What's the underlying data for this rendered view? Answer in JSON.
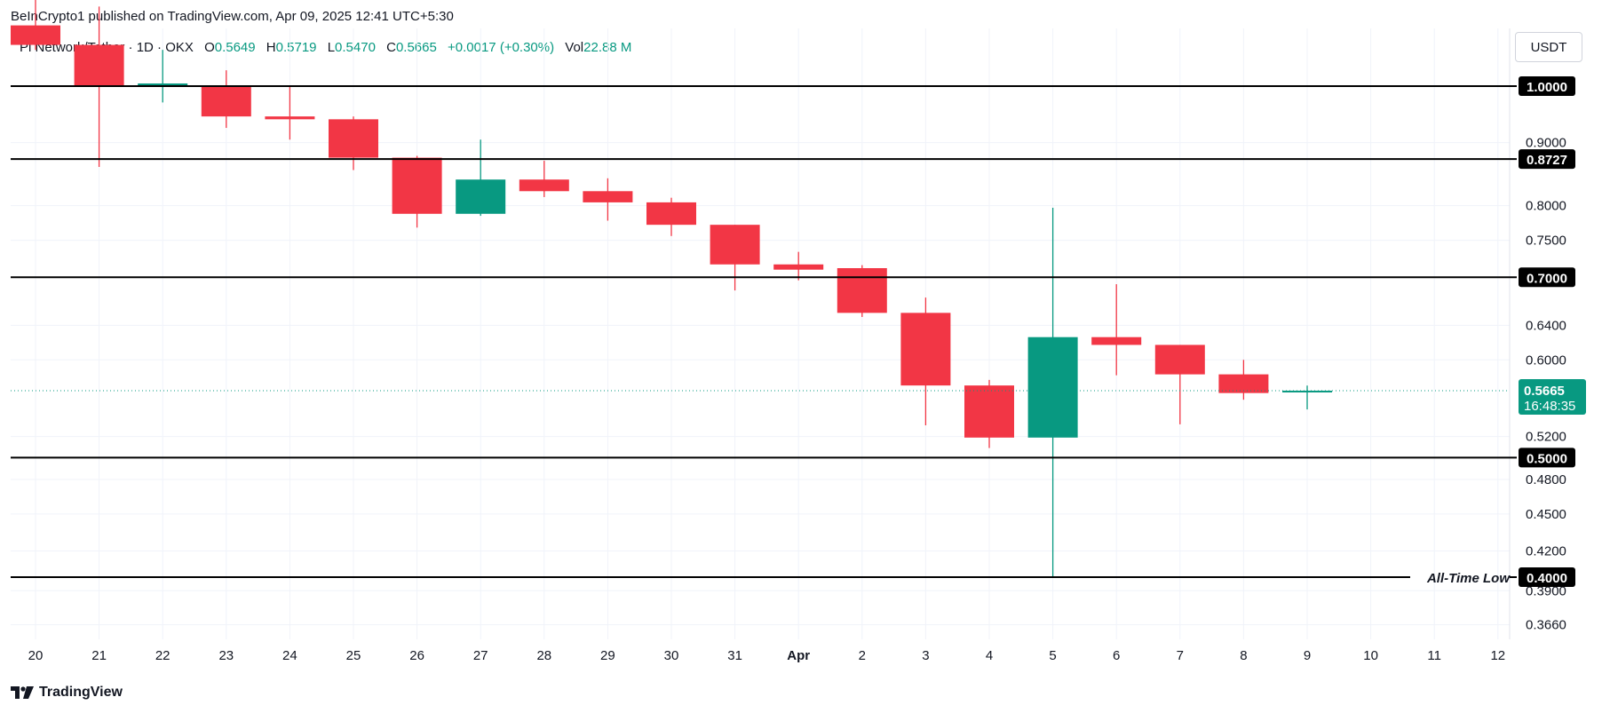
{
  "header": {
    "published_line": "BeInCrypto1 published on TradingView.com, Apr 09, 2025 12:41 UTC+5:30"
  },
  "symbol_bar": {
    "symbol": "Pi Network/Tether · 1D · OKX",
    "open_label": "O",
    "open": "0.5649",
    "high_label": "H",
    "high": "0.5719",
    "low_label": "L",
    "low": "0.5470",
    "close_label": "C",
    "close": "0.5665",
    "change": "+0.0017 (+0.30%)",
    "vol_label": "Vol",
    "vol": "22.88 M"
  },
  "currency_button": "USDT",
  "footer": {
    "brand": "TradingView"
  },
  "colors": {
    "up": "#089981",
    "down": "#f23645",
    "line": "#000000",
    "grid": "#f0f3fa",
    "price_label": "#089981"
  },
  "chart_data": {
    "type": "candlestick",
    "y_scale": "log",
    "ylim": [
      0.35,
      1.16
    ],
    "y_ticks": [
      "0.9000",
      "0.8000",
      "0.7500",
      "0.6400",
      "0.6000",
      "0.5200",
      "0.4800",
      "0.4500",
      "0.4200",
      "0.3900",
      "0.3660"
    ],
    "x_ticks": [
      "20",
      "21",
      "22",
      "23",
      "24",
      "25",
      "26",
      "27",
      "28",
      "29",
      "30",
      "31",
      "Apr",
      "2",
      "3",
      "4",
      "5",
      "6",
      "7",
      "8",
      "9",
      "10",
      "11",
      "12"
    ],
    "candles": [
      {
        "o": 1.12,
        "h": 1.18,
        "l": 1.07,
        "c": 1.08
      },
      {
        "o": 1.08,
        "h": 1.16,
        "l": 0.86,
        "c": 1.0
      },
      {
        "o": 1.0,
        "h": 1.07,
        "l": 0.97,
        "c": 1.005
      },
      {
        "o": 1.0,
        "h": 1.03,
        "l": 0.925,
        "c": 0.945
      },
      {
        "o": 0.945,
        "h": 1.0,
        "l": 0.905,
        "c": 0.94
      },
      {
        "o": 0.94,
        "h": 0.945,
        "l": 0.855,
        "c": 0.875
      },
      {
        "o": 0.875,
        "h": 0.878,
        "l": 0.768,
        "c": 0.788
      },
      {
        "o": 0.788,
        "h": 0.905,
        "l": 0.785,
        "c": 0.84
      },
      {
        "o": 0.84,
        "h": 0.87,
        "l": 0.813,
        "c": 0.822
      },
      {
        "o": 0.822,
        "h": 0.842,
        "l": 0.778,
        "c": 0.805
      },
      {
        "o": 0.805,
        "h": 0.812,
        "l": 0.756,
        "c": 0.772
      },
      {
        "o": 0.772,
        "h": 0.772,
        "l": 0.683,
        "c": 0.717
      },
      {
        "o": 0.717,
        "h": 0.734,
        "l": 0.696,
        "c": 0.71
      },
      {
        "o": 0.712,
        "h": 0.716,
        "l": 0.65,
        "c": 0.655
      },
      {
        "o": 0.655,
        "h": 0.674,
        "l": 0.531,
        "c": 0.572
      },
      {
        "o": 0.572,
        "h": 0.578,
        "l": 0.509,
        "c": 0.519
      },
      {
        "o": 0.519,
        "h": 0.797,
        "l": 0.4,
        "c": 0.626
      },
      {
        "o": 0.626,
        "h": 0.691,
        "l": 0.583,
        "c": 0.617
      },
      {
        "o": 0.617,
        "h": 0.617,
        "l": 0.532,
        "c": 0.584
      },
      {
        "o": 0.584,
        "h": 0.6,
        "l": 0.557,
        "c": 0.564
      },
      {
        "o": 0.5649,
        "h": 0.5719,
        "l": 0.547,
        "c": 0.5665
      }
    ],
    "horizontal_lines": [
      {
        "value": 1.0,
        "label": "1.0000"
      },
      {
        "value": 0.8727,
        "label": "0.8727"
      },
      {
        "value": 0.7,
        "label": "0.7000"
      },
      {
        "value": 0.5,
        "label": "0.5000"
      },
      {
        "value": 0.4,
        "label": "0.4000",
        "annotation": "All-Time Low"
      }
    ],
    "current_price": {
      "value": 0.5665,
      "label": "0.5665",
      "countdown": "16:48:35"
    }
  }
}
